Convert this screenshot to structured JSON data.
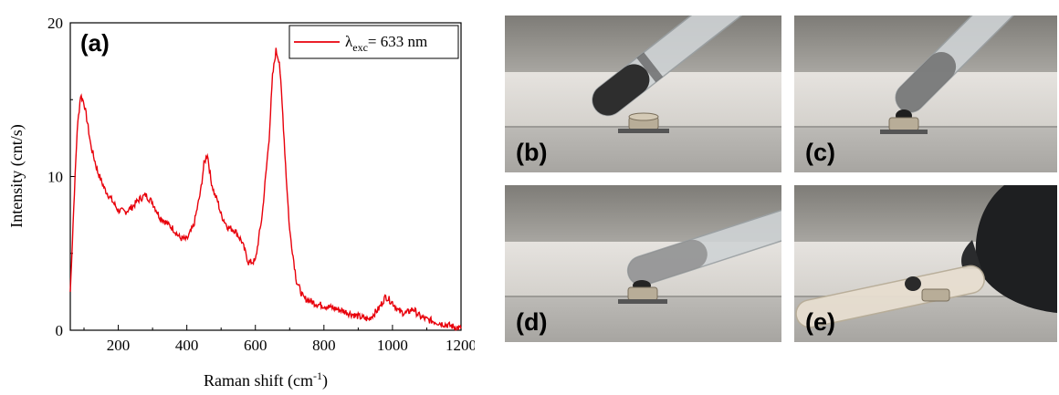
{
  "chart_data": {
    "type": "line",
    "panel_label": "(a)",
    "xlabel": "Raman shift (cm",
    "xlabel_sup": "-1",
    "xlabel_close": ")",
    "ylabel": "Intensity (cnt/s)",
    "xlim": [
      60,
      1200
    ],
    "ylim": [
      0,
      20
    ],
    "xticks": [
      200,
      400,
      600,
      800,
      1000,
      1200
    ],
    "yticks": [
      0,
      10,
      20
    ],
    "legend_position": "top-right",
    "series": [
      {
        "name": "λ_exc= 633 nm",
        "legend_lambda": "λ",
        "legend_sub": "exc",
        "legend_rest": "= 633 nm",
        "color": "#e8000b",
        "x": [
          60,
          70,
          80,
          90,
          100,
          110,
          120,
          140,
          160,
          180,
          200,
          220,
          240,
          260,
          280,
          300,
          320,
          340,
          360,
          380,
          400,
          420,
          440,
          450,
          460,
          470,
          480,
          490,
          500,
          520,
          540,
          560,
          580,
          600,
          620,
          640,
          650,
          660,
          670,
          680,
          690,
          700,
          720,
          740,
          760,
          780,
          800,
          850,
          900,
          930,
          960,
          980,
          1000,
          1020,
          1040,
          1060,
          1080,
          1100,
          1150,
          1200
        ],
        "y": [
          2.5,
          8.0,
          13.0,
          15.3,
          14.8,
          13.5,
          12.0,
          10.3,
          9.2,
          8.5,
          7.8,
          7.7,
          8.0,
          8.5,
          8.8,
          8.3,
          7.4,
          7.0,
          6.6,
          6.0,
          5.9,
          6.8,
          9.0,
          10.8,
          11.5,
          9.8,
          8.9,
          8.4,
          7.5,
          6.7,
          6.5,
          5.8,
          4.4,
          4.5,
          7.5,
          12.5,
          16.5,
          18.2,
          17.5,
          14.0,
          10.0,
          6.5,
          3.2,
          2.1,
          1.9,
          1.7,
          1.6,
          1.3,
          0.9,
          0.7,
          1.4,
          2.2,
          1.8,
          1.2,
          1.1,
          1.4,
          0.9,
          0.7,
          0.4,
          0.1
        ]
      }
    ]
  },
  "photos": [
    {
      "label": "(b)"
    },
    {
      "label": "(c)"
    },
    {
      "label": "(d)"
    },
    {
      "label": "(e)"
    }
  ]
}
